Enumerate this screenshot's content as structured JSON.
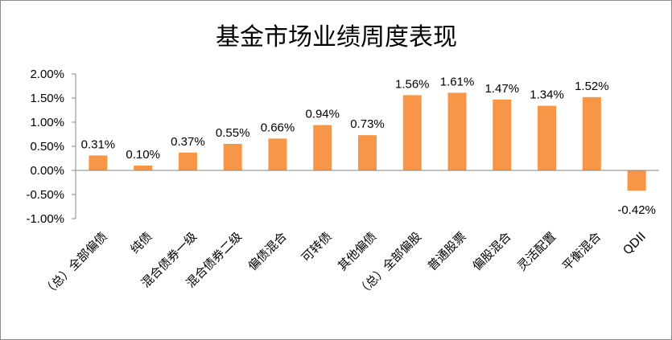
{
  "chart_data": {
    "type": "bar",
    "title": "基金市场业绩周度表现",
    "xlabel": "",
    "ylabel": "",
    "ylim": [
      -1.0,
      2.0
    ],
    "yticks": [
      2.0,
      1.5,
      1.0,
      0.5,
      0.0,
      -0.5,
      -1.0
    ],
    "ytick_labels": [
      "2.00%",
      "1.50%",
      "1.00%",
      "0.50%",
      "0.00%",
      "-0.50%",
      "-1.00%"
    ],
    "categories": [
      "（总）全部偏债",
      "纯债",
      "混合债券一级",
      "混合债券二级",
      "偏债混合",
      "可转债",
      "其他偏债",
      "（总）全部偏股",
      "普通股票",
      "偏股混合",
      "灵活配置",
      "平衡混合",
      "QDII"
    ],
    "values": [
      0.31,
      0.1,
      0.37,
      0.55,
      0.66,
      0.94,
      0.73,
      1.56,
      1.61,
      1.47,
      1.34,
      1.52,
      -0.42
    ],
    "data_labels": [
      "0.31%",
      "0.10%",
      "0.37%",
      "0.55%",
      "0.66%",
      "0.94%",
      "0.73%",
      "1.56%",
      "1.61%",
      "1.47%",
      "1.34%",
      "1.52%",
      "-0.42%"
    ],
    "bar_color": "#F79646",
    "grid": false,
    "legend": "none"
  }
}
